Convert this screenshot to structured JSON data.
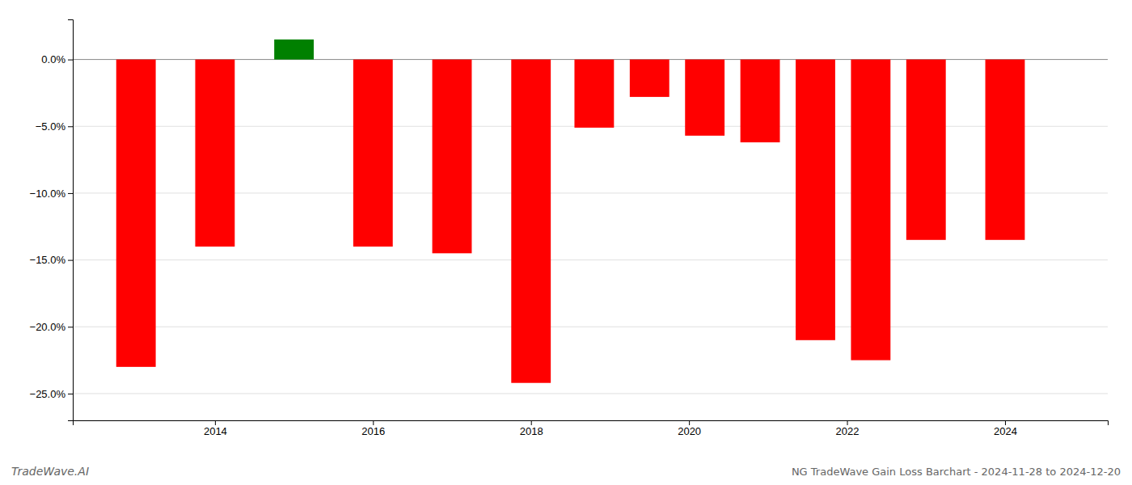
{
  "chart_data": {
    "type": "bar",
    "title": "NG TradeWave Gain Loss Barchart - 2024-11-28 to 2024-12-20",
    "annotations": [
      "TradeWave.AI"
    ],
    "x": [
      2013.0,
      2014.0,
      2015.0,
      2016.0,
      2017.0,
      2018.0,
      2018.8,
      2019.5,
      2020.2,
      2020.9,
      2021.6,
      2022.3,
      2023.0,
      2024.0
    ],
    "values": [
      -23.0,
      -14.0,
      1.5,
      -14.0,
      -14.5,
      -24.2,
      -5.1,
      -2.8,
      -5.7,
      -6.2,
      -21.0,
      -22.5,
      -13.5,
      -13.5
    ],
    "colors": [
      "#ff0000",
      "#ff0000",
      "#008000",
      "#ff0000",
      "#ff0000",
      "#ff0000",
      "#ff0000",
      "#ff0000",
      "#ff0000",
      "#ff0000",
      "#ff0000",
      "#ff0000",
      "#ff0000",
      "#ff0000"
    ],
    "xlim": [
      2012.2,
      2025.3
    ],
    "xticks": [
      2014,
      2016,
      2018,
      2020,
      2022,
      2024
    ],
    "ylim": [
      -27.0,
      3.0
    ],
    "yticks": [
      {
        "value": 0.0,
        "label": "0.0%"
      },
      {
        "value": -5.0,
        "label": "−5.0%"
      },
      {
        "value": -10.0,
        "label": "−10.0%"
      },
      {
        "value": -15.0,
        "label": "−15.0%"
      },
      {
        "value": -20.0,
        "label": "−20.0%"
      },
      {
        "value": -25.0,
        "label": "−25.0%"
      }
    ],
    "grid": true
  }
}
